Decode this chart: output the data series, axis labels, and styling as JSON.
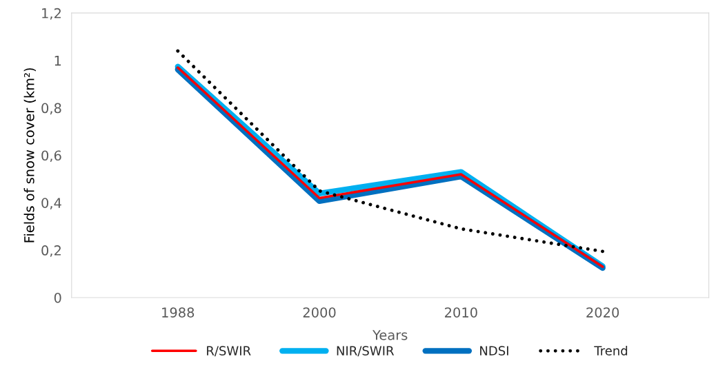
{
  "chart_data": {
    "type": "line",
    "xlabel": "Years",
    "ylabel": "Fields of snow cover (km²)",
    "categories": [
      "1988",
      "2000",
      "2010",
      "2020"
    ],
    "series": [
      {
        "name": "R/SWIR",
        "color": "#ff0000",
        "values": [
          0.97,
          0.42,
          0.52,
          0.13
        ]
      },
      {
        "name": "NIR/SWIR",
        "color": "#00b0f0",
        "values": [
          0.974,
          0.439,
          0.53,
          0.132
        ]
      },
      {
        "name": "NDSI",
        "color": "#0070c0",
        "values": [
          0.962,
          0.407,
          0.511,
          0.125
        ]
      },
      {
        "name": "Trend",
        "color": "#000000",
        "line_style": "dotted",
        "values": [
          1.04,
          0.45,
          0.29,
          0.195
        ]
      }
    ],
    "ylim": [
      0,
      1.2
    ],
    "yticks": [
      {
        "value": 0,
        "label": "0"
      },
      {
        "value": 0.2,
        "label": "0,2"
      },
      {
        "value": 0.4,
        "label": "0,4"
      },
      {
        "value": 0.6,
        "label": "0,6"
      },
      {
        "value": 0.8,
        "label": "0,8"
      },
      {
        "value": 1,
        "label": "1"
      },
      {
        "value": 1.2,
        "label": "1,2"
      }
    ],
    "grid": false,
    "legend": "bottom",
    "marker": "none",
    "line_style": "solid"
  }
}
